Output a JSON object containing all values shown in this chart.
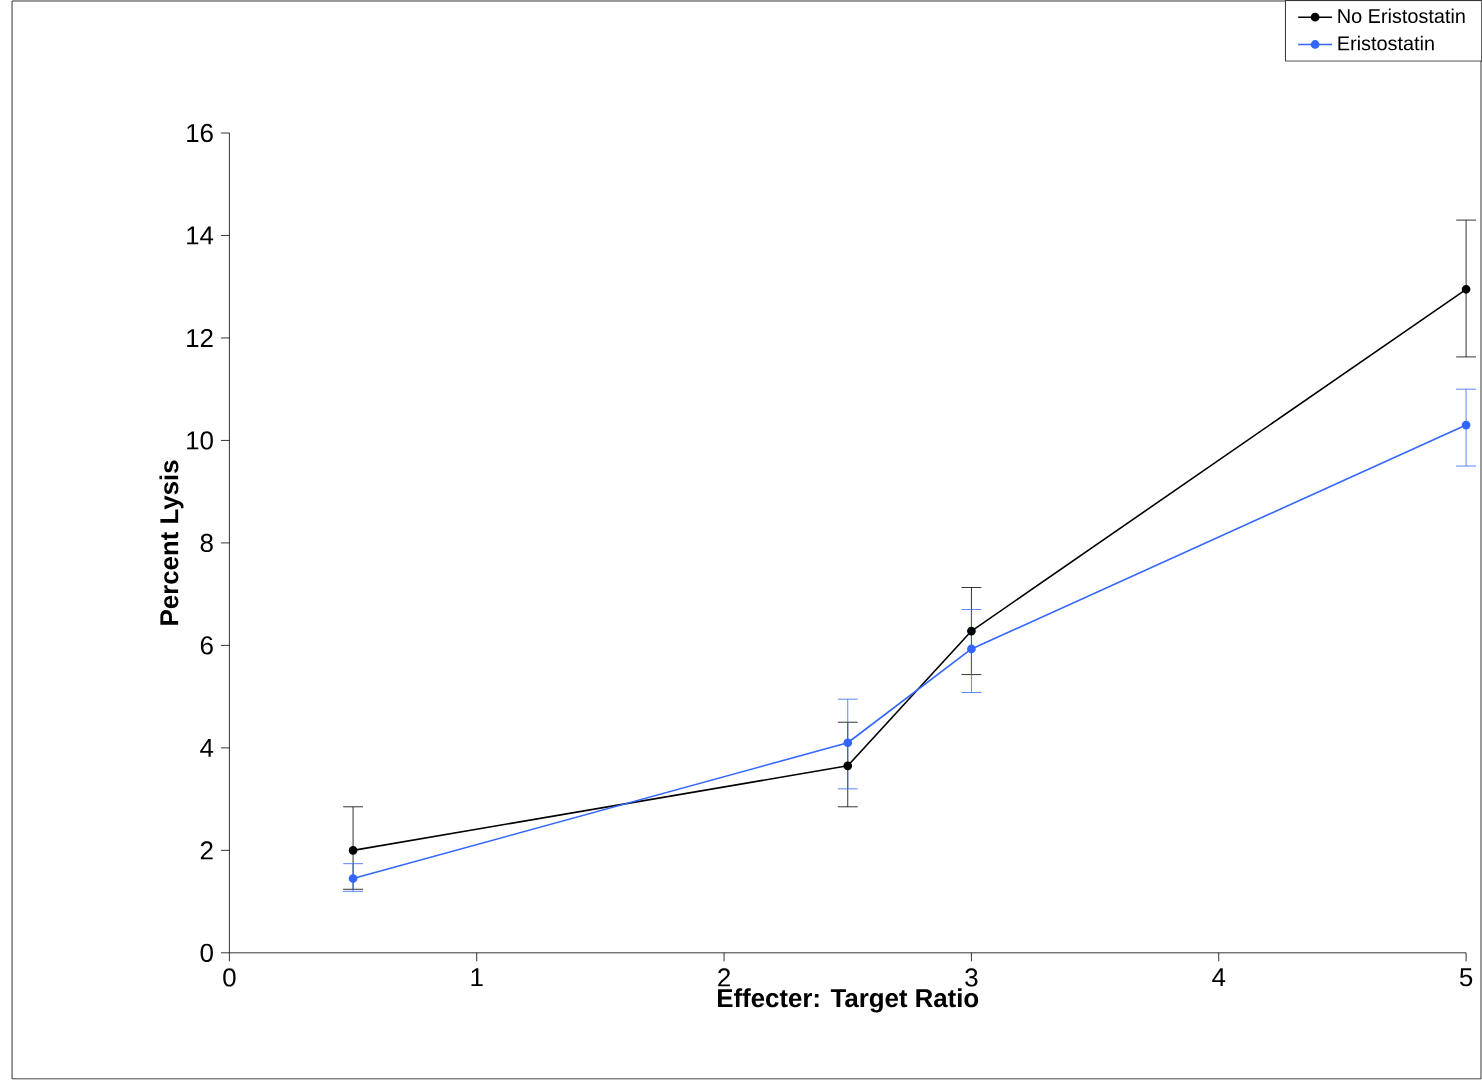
{
  "chart_data": {
    "type": "line",
    "xlabel": "Effecter: Target Ratio",
    "ylabel": "Percent Lysis",
    "x": [
      0.5,
      2.5,
      3,
      5
    ],
    "series": [
      {
        "name": "No Eristostatin",
        "color": "#000000",
        "values": [
          2.0,
          3.65,
          6.28,
          12.95
        ],
        "errors": [
          [
            1.24,
            2.85
          ],
          [
            2.85,
            4.5
          ],
          [
            5.43,
            7.13
          ],
          [
            11.63,
            14.3
          ]
        ]
      },
      {
        "name": "Eristostatin",
        "color": "#3366ff",
        "values": [
          1.45,
          4.1,
          5.93,
          10.3
        ],
        "errors": [
          [
            1.2,
            1.74
          ],
          [
            3.2,
            4.95
          ],
          [
            5.08,
            6.7
          ],
          [
            9.5,
            11.0
          ]
        ]
      }
    ],
    "xlim": [
      0,
      5
    ],
    "xticks": [
      0,
      1,
      2,
      3,
      4,
      5
    ],
    "ylim": [
      0,
      16
    ],
    "yticks": [
      0,
      2,
      4,
      6,
      8,
      10,
      12,
      14,
      16
    ],
    "marker": "circle",
    "legend": "top right",
    "grid": false
  }
}
